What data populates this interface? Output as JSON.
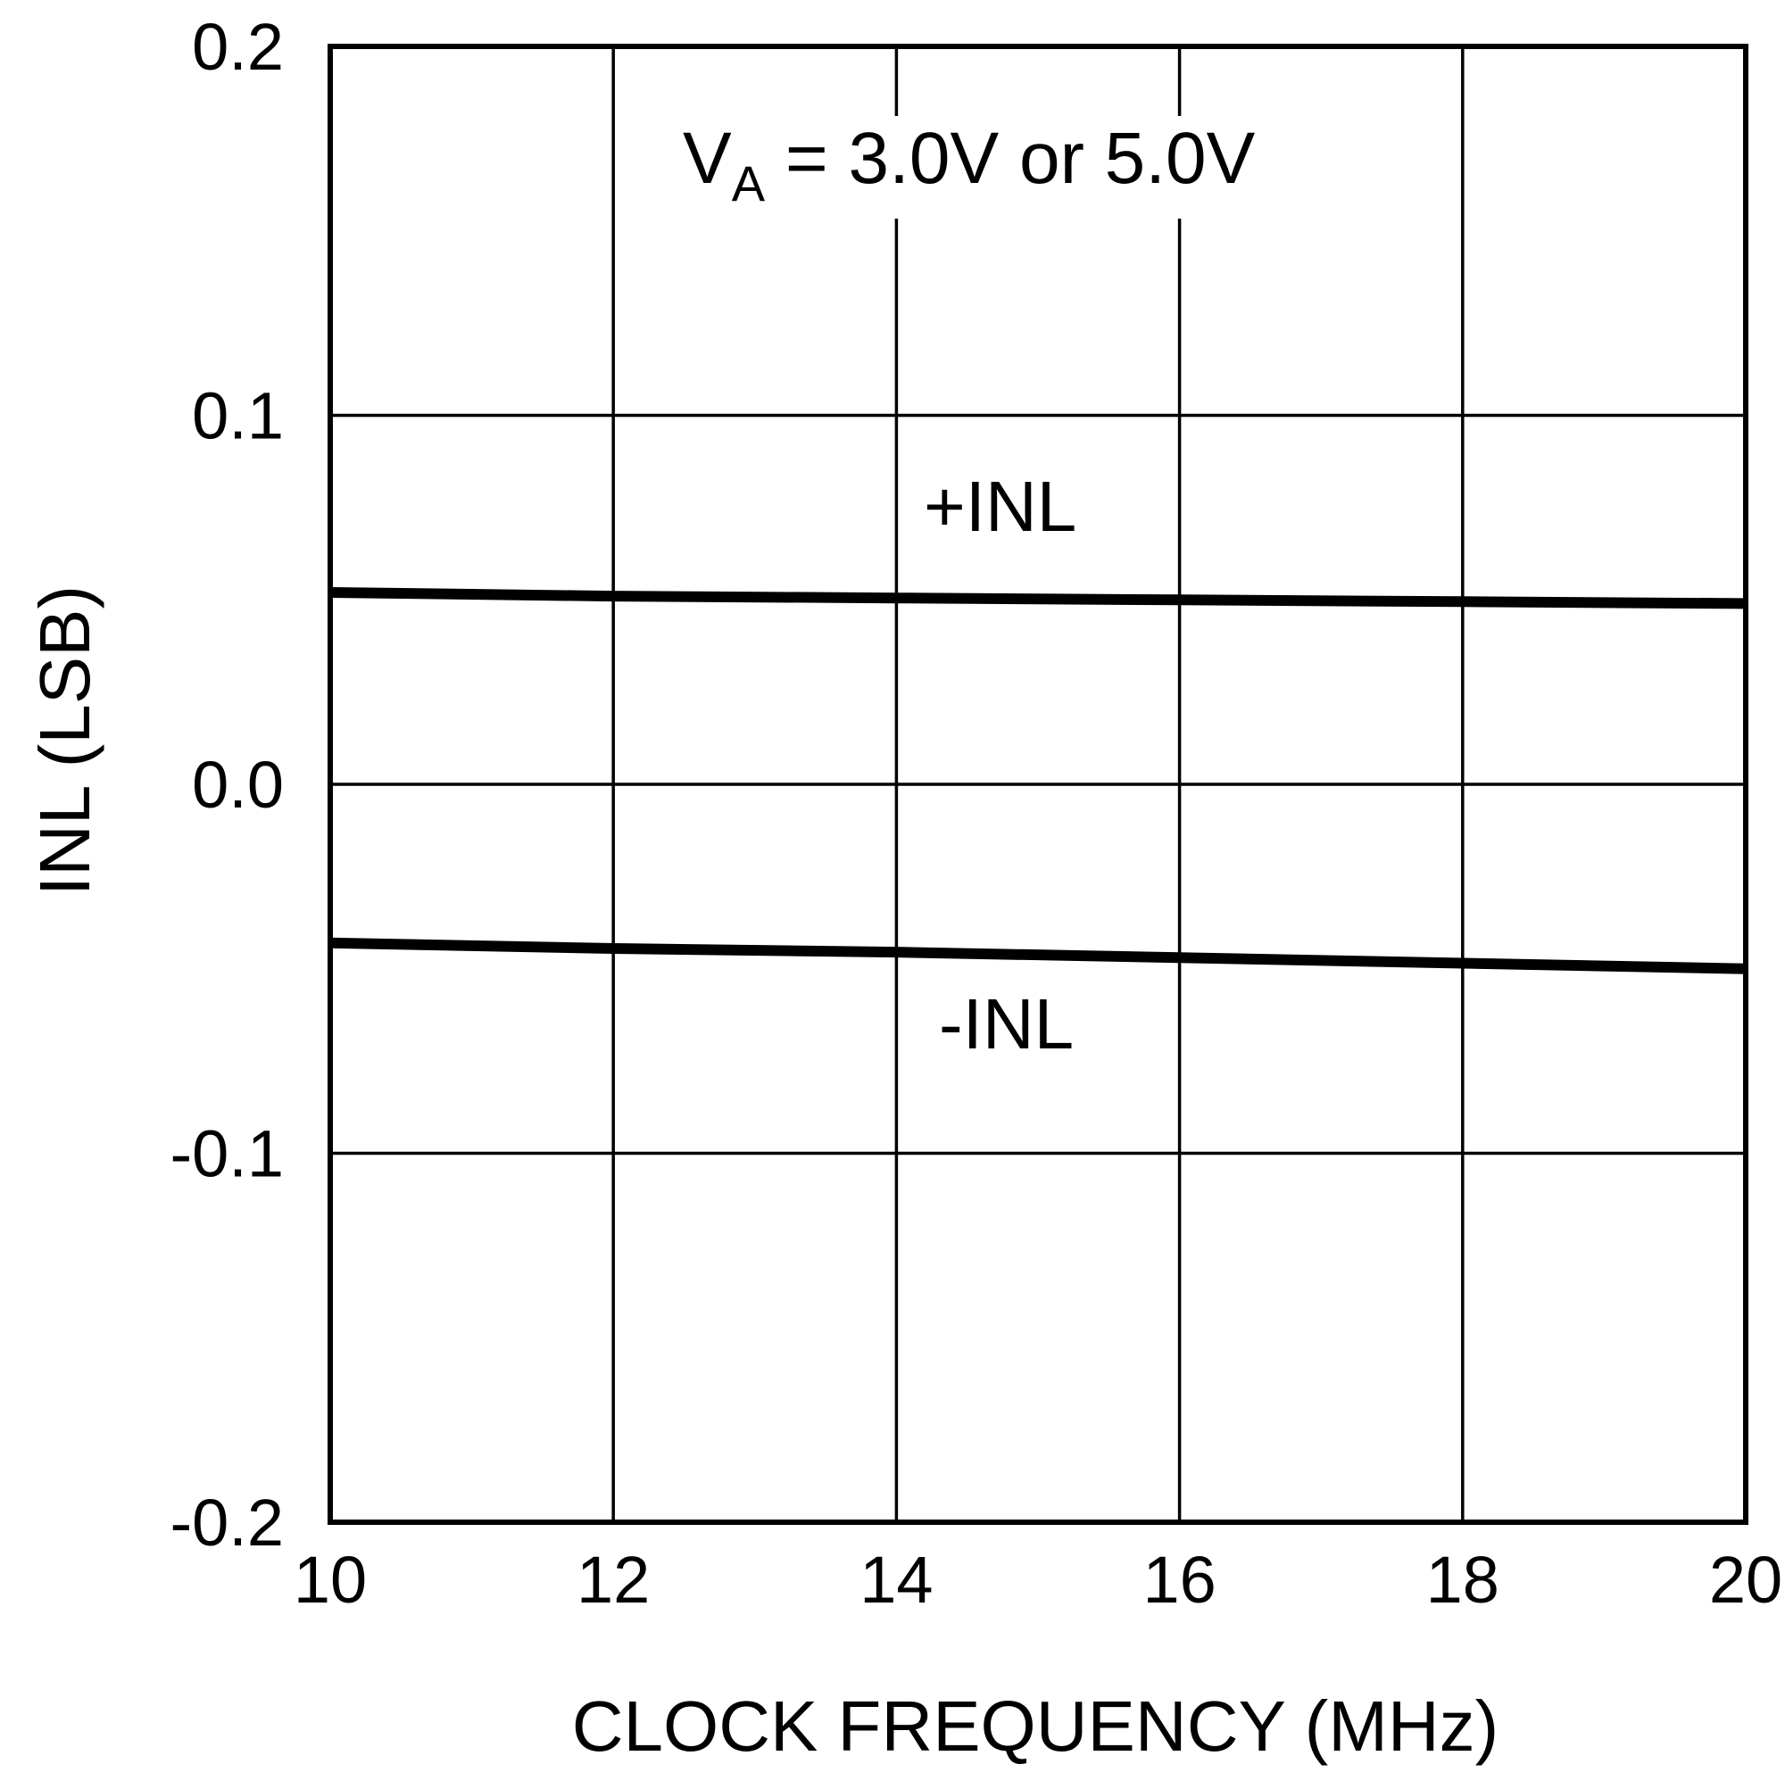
{
  "chart_data": {
    "type": "line",
    "xlabel": "CLOCK FREQUENCY (MHz)",
    "ylabel": "INL (LSB)",
    "xlim": [
      10,
      20
    ],
    "ylim": [
      -0.2,
      0.2
    ],
    "x_ticks": [
      "10",
      "12",
      "14",
      "16",
      "18",
      "20"
    ],
    "y_ticks": [
      "0.2",
      "0.1",
      "0.0",
      "-0.1",
      "-0.2"
    ],
    "grid": true,
    "annotation": {
      "symbol": "V",
      "subscript": "A",
      "text": " = 3.0V or 5.0V"
    },
    "series": [
      {
        "name": "+INL",
        "x": [
          10,
          12,
          14,
          16,
          18,
          20
        ],
        "y": [
          0.052,
          0.051,
          0.0505,
          0.05,
          0.0495,
          0.049
        ]
      },
      {
        "name": "-INL",
        "x": [
          10,
          12,
          14,
          16,
          18,
          20
        ],
        "y": [
          -0.043,
          -0.0445,
          -0.0455,
          -0.047,
          -0.0485,
          -0.05
        ]
      }
    ],
    "colors": {
      "line": "#000000",
      "grid": "#000000",
      "background": "#ffffff"
    }
  }
}
